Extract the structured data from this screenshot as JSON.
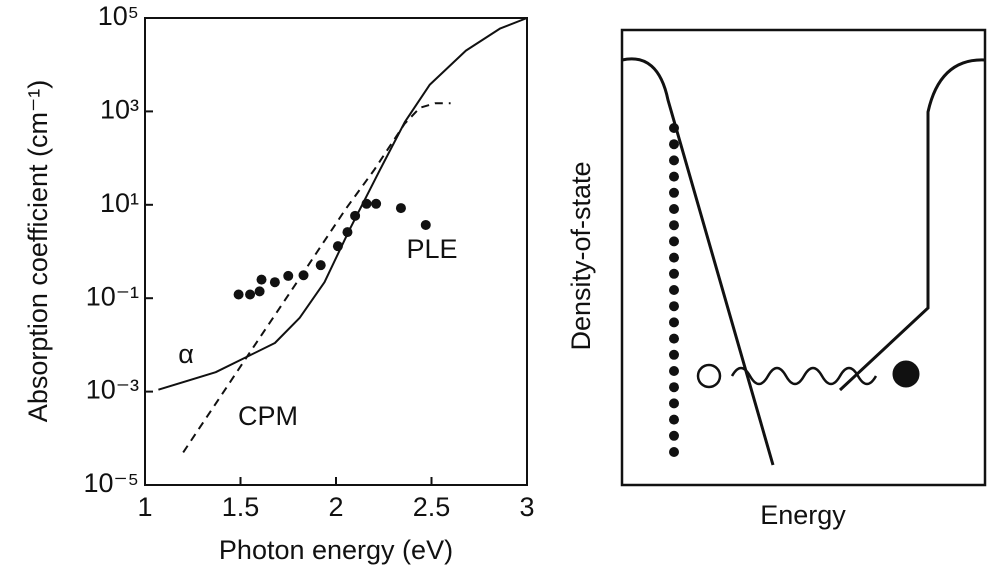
{
  "chart_data": {
    "type": "line",
    "ylog": true,
    "xlabel": "Photon energy (eV)",
    "ylabel": "Absorption coefficient (cm⁻¹)",
    "xlim": [
      1,
      3
    ],
    "xticks": [
      1,
      1.5,
      2,
      2.5,
      3
    ],
    "ylim": [
      1e-05,
      100000
    ],
    "yticks": [
      {
        "value": 1e-05,
        "label": "10⁻⁵"
      },
      {
        "value": 0.001,
        "label": "10⁻³"
      },
      {
        "value": 0.1,
        "label": "10⁻¹"
      },
      {
        "value": 10,
        "label": "10¹"
      },
      {
        "value": 1000,
        "label": "10³"
      },
      {
        "value": 100000,
        "label": "10⁵"
      }
    ],
    "series": [
      {
        "name": "α",
        "color": "#111111",
        "style": "solid",
        "x": [
          1.07,
          1.37,
          1.68,
          1.81,
          1.94,
          2.07,
          2.23,
          2.36,
          2.49,
          2.68,
          2.86,
          3.0
        ],
        "values": [
          0.0011,
          0.0026,
          0.011,
          0.038,
          0.22,
          2.9,
          56,
          590,
          3700,
          20000,
          60000,
          100000
        ]
      },
      {
        "name": "CPM",
        "color": "#111111",
        "style": "dashed",
        "x": [
          1.2,
          1.55,
          1.81,
          2.05,
          2.2,
          2.36,
          2.44,
          2.52,
          2.6
        ],
        "values": [
          5e-05,
          0.007,
          0.27,
          8,
          56,
          550,
          1200,
          1500,
          1500
        ]
      },
      {
        "name": "PLE",
        "color": "#111111",
        "style": "markers",
        "x": [
          1.49,
          1.55,
          1.6,
          1.61,
          1.68,
          1.75,
          1.83,
          1.92,
          2.01,
          2.06,
          2.1,
          2.16,
          2.21,
          2.34,
          2.47
        ],
        "values": [
          0.12,
          0.12,
          0.14,
          0.25,
          0.22,
          0.3,
          0.31,
          0.51,
          1.3,
          2.6,
          5.8,
          10.5,
          10.5,
          8.5,
          3.7
        ]
      }
    ]
  },
  "diagram": {
    "xlabel": "Energy",
    "ylabel": "Density-of-state"
  }
}
